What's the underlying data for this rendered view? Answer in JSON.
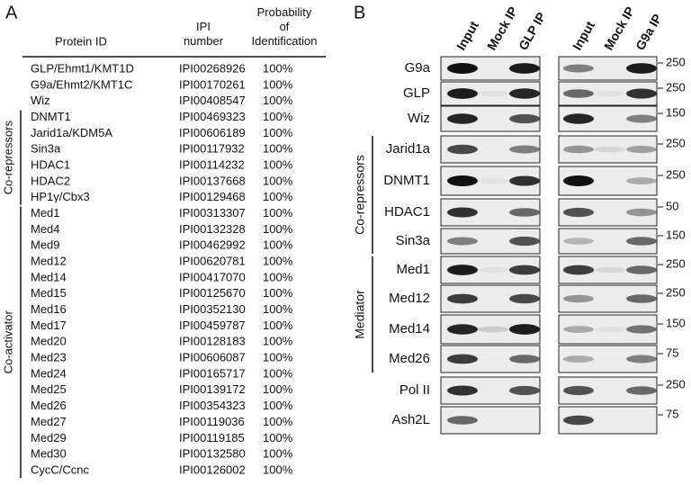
{
  "panel_a": {
    "label": "A",
    "headers": [
      "Protein ID",
      "IPI number",
      "Probability of Identification"
    ],
    "rows": [
      [
        "GLP/Ehmt1/KMT1D",
        "IPI00268926",
        "100%"
      ],
      [
        "G9a/Ehmt2/KMT1C",
        "IPI00170261",
        "100%"
      ],
      [
        "Wiz",
        "IPI00408547",
        "100%"
      ],
      [
        "DNMT1",
        "IPI00469323",
        "100%"
      ],
      [
        "Jarid1a/KDM5A",
        "IPI00606189",
        "100%"
      ],
      [
        "Sin3a",
        "IPI00117932",
        "100%"
      ],
      [
        "HDAC1",
        "IPI00114232",
        "100%"
      ],
      [
        "HDAC2",
        "IPI00137668",
        "100%"
      ],
      [
        "HP1γ/Cbx3",
        "IPI00129468",
        "100%"
      ],
      [
        "Med1",
        "IPI00313307",
        "100%"
      ],
      [
        "Med4",
        "IPI00132328",
        "100%"
      ],
      [
        "Med9",
        "IPI00462992",
        "100%"
      ],
      [
        "Med12",
        "IPI00620781",
        "100%"
      ],
      [
        "Med14",
        "IPI00417070",
        "100%"
      ],
      [
        "Med15",
        "IPI00125670",
        "100%"
      ],
      [
        "Med16",
        "IPI00352130",
        "100%"
      ],
      [
        "Med17",
        "IPI00459787",
        "100%"
      ],
      [
        "Med20",
        "IPI00128183",
        "100%"
      ],
      [
        "Med23",
        "IPI00606087",
        "100%"
      ],
      [
        "Med24",
        "IPI00165717",
        "100%"
      ],
      [
        "Med25",
        "IPI00139172",
        "100%"
      ],
      [
        "Med26",
        "IPI00354323",
        "100%"
      ],
      [
        "Med27",
        "IPI00119036",
        "100%"
      ],
      [
        "Med29",
        "IPI00119185",
        "100%"
      ],
      [
        "Med30",
        "IPI00132580",
        "100%"
      ],
      [
        "CycC/Ccnc",
        "IPI00126002",
        "100%"
      ]
    ],
    "groups": [
      "Co-repressors",
      "Co-activator"
    ]
  },
  "panel_b": {
    "label": "B",
    "lanes_left": [
      "Input",
      "Mock IP",
      "GLP IP"
    ],
    "lanes_right": [
      "Input",
      "Mock IP",
      "G9a IP"
    ],
    "rows": [
      {
        "protein": "G9a",
        "marker": "250"
      },
      {
        "protein": "GLP",
        "marker": "250"
      },
      {
        "protein": "Wiz",
        "marker": "150"
      },
      {
        "protein": "Jarid1a",
        "marker": "250"
      },
      {
        "protein": "DNMT1",
        "marker": "250"
      },
      {
        "protein": "HDAC1",
        "marker": "50"
      },
      {
        "protein": "Sin3a",
        "marker": "150"
      },
      {
        "protein": "Med1",
        "marker": "250"
      },
      {
        "protein": "Med12",
        "marker": "250"
      },
      {
        "protein": "Med14",
        "marker": "150"
      },
      {
        "protein": "Med26",
        "marker": "75"
      },
      {
        "protein": "Pol II",
        "marker": "250"
      },
      {
        "protein": "Ash2L",
        "marker": "75"
      }
    ],
    "groups": [
      "Co-repressors",
      "Mediator"
    ]
  }
}
